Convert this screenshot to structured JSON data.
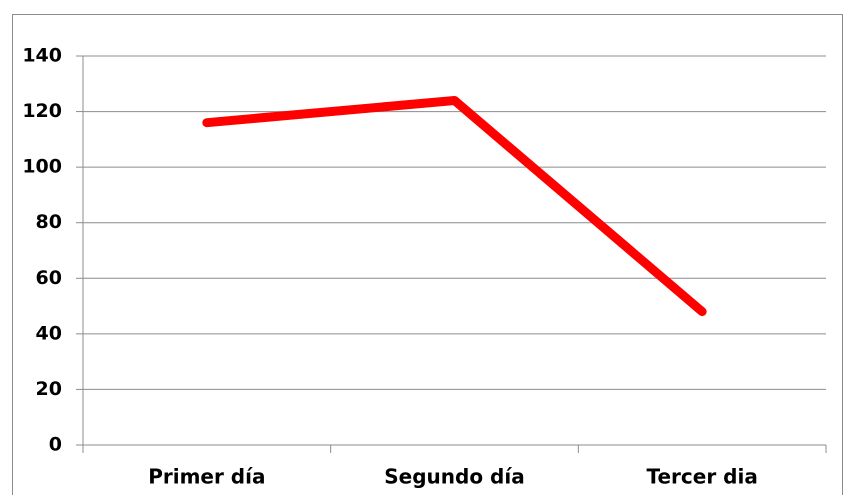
{
  "chart_data": {
    "type": "line",
    "categories": [
      "Primer día",
      "Segundo día",
      "Tercer dia"
    ],
    "series": [
      {
        "name": null,
        "color": "#ff0000",
        "values": [
          116,
          124,
          48
        ]
      }
    ],
    "ylim": [
      0,
      140
    ],
    "yticks": [
      0,
      20,
      40,
      60,
      80,
      100,
      120,
      140
    ],
    "grid": true
  }
}
